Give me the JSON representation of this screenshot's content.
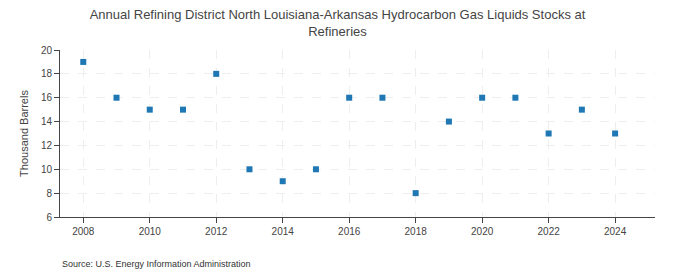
{
  "chart_data": {
    "type": "scatter",
    "title": "Annual Refining District North Louisiana-Arkansas Hydrocarbon Gas Liquids Stocks at\nRefineries",
    "ylabel": "Thousand Barrels",
    "source": "Source: U.S. Energy Information Administration",
    "x": [
      2008,
      2009,
      2010,
      2011,
      2012,
      2013,
      2014,
      2015,
      2016,
      2017,
      2018,
      2019,
      2020,
      2021,
      2022,
      2023,
      2024
    ],
    "values": [
      19,
      16,
      15,
      15,
      18,
      10,
      9,
      10,
      16,
      16,
      8,
      14,
      16,
      16,
      13,
      15,
      13
    ],
    "marker": "square",
    "xlim": [
      2007.3,
      2025.2
    ],
    "xticks": [
      2008,
      2010,
      2012,
      2014,
      2016,
      2018,
      2020,
      2022,
      2024
    ],
    "ylim": [
      6,
      20
    ],
    "yticks": [
      6,
      8,
      10,
      12,
      14,
      16,
      18,
      20
    ],
    "grid": true
  }
}
